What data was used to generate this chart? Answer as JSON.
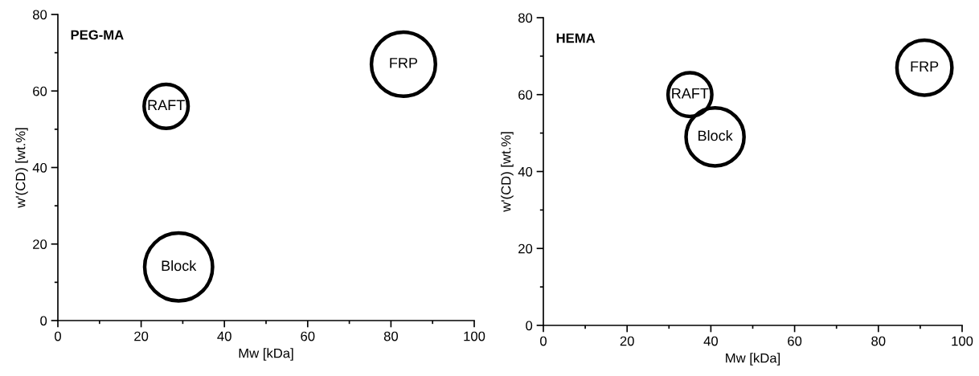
{
  "chart_data": [
    {
      "type": "bubble",
      "title": "PEG-MA",
      "xlabel": "Mw [kDa]",
      "ylabel": "w'(CD) [wt.%]",
      "x": [
        26,
        29,
        83
      ],
      "values": [
        56,
        14,
        67
      ],
      "sizes": [
        0.42,
        1,
        0.89
      ],
      "color": "#000000",
      "annotations": [
        {
          "text": "RAFT",
          "x": 26,
          "y": 56
        },
        {
          "text": "Block",
          "x": 29,
          "y": 14
        },
        {
          "text": "FRP",
          "x": 83,
          "y": 67
        }
      ],
      "xlim": [
        0,
        100
      ],
      "ylim": [
        0,
        80
      ],
      "xticks": [
        0,
        20,
        40,
        60,
        80,
        100
      ],
      "yticks": [
        0,
        20,
        40,
        60,
        80
      ],
      "grid": false
    },
    {
      "type": "bubble",
      "title": "HEMA",
      "xlabel": "Mw [kDa]",
      "ylabel": "w'(CD) [wt.%]",
      "x": [
        35,
        41,
        91
      ],
      "values": [
        60,
        49,
        67
      ],
      "sizes": [
        0.57,
        1,
        0.9
      ],
      "color": "#000000",
      "annotations": [
        {
          "text": "RAFT",
          "x": 35,
          "y": 60
        },
        {
          "text": "Block",
          "x": 41,
          "y": 49
        },
        {
          "text": "FRP",
          "x": 91,
          "y": 67
        }
      ],
      "xlim": [
        0,
        100
      ],
      "ylim": [
        0,
        80
      ],
      "xticks": [
        0,
        20,
        40,
        60,
        80,
        100
      ],
      "yticks": [
        0,
        20,
        40,
        60,
        80
      ],
      "grid": false
    }
  ]
}
